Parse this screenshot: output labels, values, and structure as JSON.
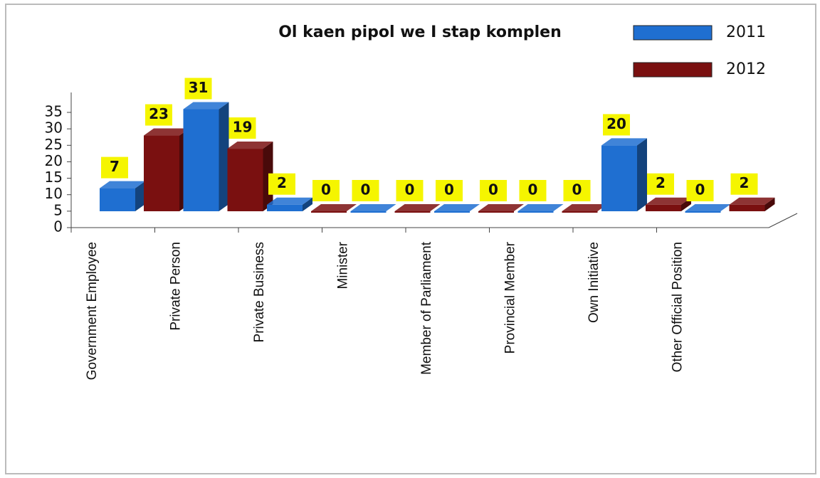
{
  "chart_data": {
    "type": "bar3d",
    "title": "Ol kaen pipol we I stap komplen",
    "categories": [
      "Government Employee",
      "Private Person",
      "Private Business",
      "Minister",
      "Member of Parliament",
      "Provincial Member",
      "Own Initiative",
      "Other Official Position"
    ],
    "series": [
      {
        "name": "2011",
        "color": "#1f6fd1",
        "values": [
          7,
          31,
          2,
          0,
          0,
          0,
          20,
          0
        ]
      },
      {
        "name": "2012",
        "color": "#7a1010",
        "values": [
          23,
          19,
          0,
          0,
          0,
          0,
          2,
          2
        ]
      }
    ],
    "ylim": [
      0,
      35
    ],
    "yticks": [
      0,
      5,
      10,
      15,
      20,
      25,
      30,
      35
    ]
  }
}
